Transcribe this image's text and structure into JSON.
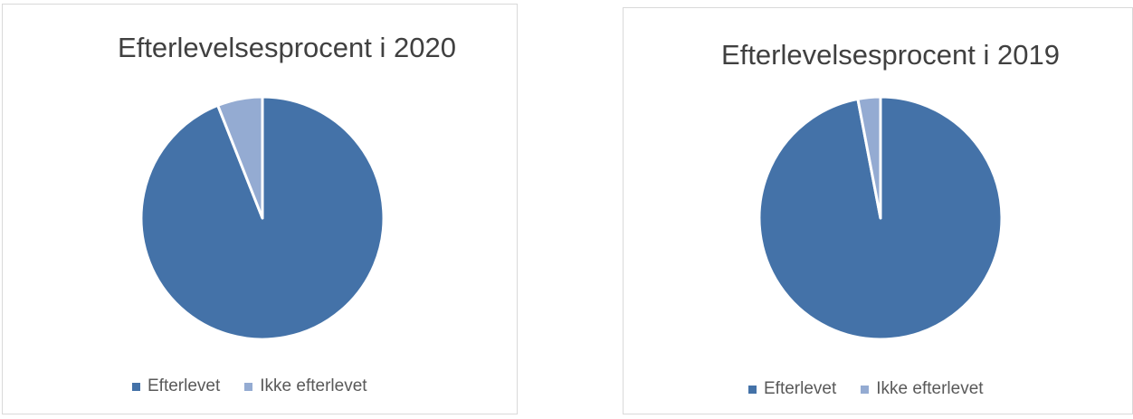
{
  "colors": {
    "efterlevet": "#4472a8",
    "ikke_efterlevet": "#94abd2"
  },
  "chart_data": [
    {
      "type": "pie",
      "title": "Efterlevelsesprocent i 2020",
      "categories": [
        "Efterlevet",
        "Ikke efterlevet"
      ],
      "values": [
        94,
        6
      ],
      "colors": [
        "#4472a8",
        "#94abd2"
      ],
      "legend": {
        "position": "bottom",
        "items": [
          "Efterlevet",
          "Ikke efterlevet"
        ]
      }
    },
    {
      "type": "pie",
      "title": "Efterlevelsesprocent i 2019",
      "categories": [
        "Efterlevet",
        "Ikke efterlevet"
      ],
      "values": [
        97,
        3
      ],
      "colors": [
        "#4472a8",
        "#94abd2"
      ],
      "legend": {
        "position": "bottom",
        "items": [
          "Efterlevet",
          "Ikke efterlevet"
        ]
      }
    }
  ]
}
